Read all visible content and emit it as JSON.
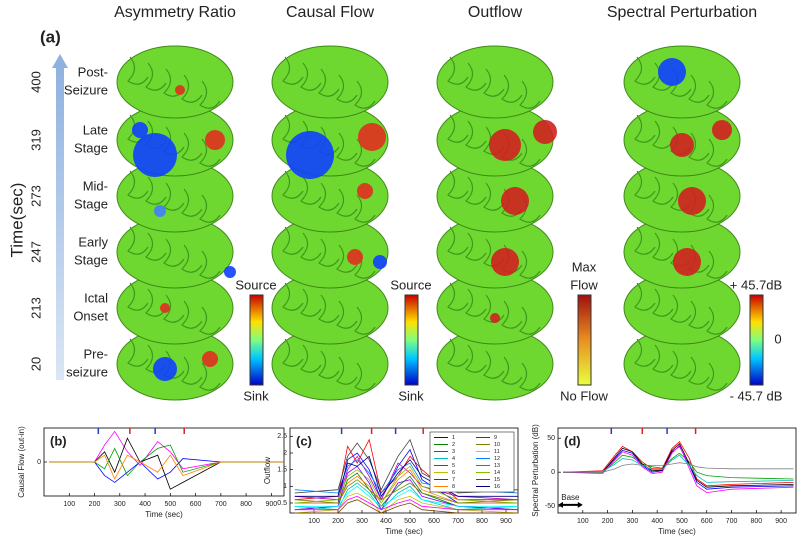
{
  "panel_a": {
    "label": "(a)",
    "columns": [
      "Asymmetry Ratio",
      "Causal Flow",
      "Outflow",
      "Spectral Perturbation"
    ],
    "time_axis_label": "Time(sec)",
    "rows": [
      {
        "time": "400",
        "stage": [
          "Post-",
          "Seizure"
        ]
      },
      {
        "time": "319",
        "stage": [
          "Late",
          "Stage"
        ]
      },
      {
        "time": "273",
        "stage": [
          "Mid-",
          "Stage"
        ]
      },
      {
        "time": "247",
        "stage": [
          "Early",
          "Stage"
        ]
      },
      {
        "time": "213",
        "stage": [
          "Ictal",
          "Onset"
        ]
      },
      {
        "time": "20",
        "stage": [
          "Pre-",
          "seizure"
        ]
      }
    ],
    "colorbars": [
      {
        "top": [
          "Source"
        ],
        "bottom": "Sink"
      },
      {
        "top": [
          "Source"
        ],
        "bottom": "Sink"
      },
      {
        "top": [
          "Max",
          "Flow"
        ],
        "bottom": "No Flow"
      },
      {
        "top": [
          "+ 45.7dB"
        ],
        "middle": "0",
        "bottom": "- 45.7 dB"
      }
    ]
  },
  "chart_data": [
    {
      "type": "line",
      "label": "(b)",
      "ylabel": "Causal Flow (out-in)",
      "xlabel": "Time (sec)",
      "xlim": [
        0,
        950
      ],
      "xticks": [
        100,
        200,
        300,
        400,
        500,
        600,
        700,
        800,
        900
      ],
      "ylim": [
        -1,
        1
      ],
      "yticks": [
        0
      ],
      "events": [
        {
          "x": 215,
          "color": "#2040c0"
        },
        {
          "x": 340,
          "color": "#e02020"
        },
        {
          "x": 440,
          "color": "#2040c0"
        },
        {
          "x": 555,
          "color": "#e02020"
        }
      ],
      "x": [
        20,
        200,
        240,
        280,
        330,
        380,
        450,
        500,
        550,
        700,
        950
      ],
      "series": [
        {
          "color": "#ff00ff",
          "values": [
            0,
            0,
            0.5,
            0.9,
            0.3,
            -0.1,
            0.6,
            0.3,
            -0.2,
            0,
            0
          ]
        },
        {
          "color": "#0000ff",
          "values": [
            0,
            0,
            -0.4,
            -0.6,
            -0.3,
            0,
            -0.5,
            -0.3,
            0.1,
            0,
            0
          ]
        },
        {
          "color": "#000000",
          "values": [
            0,
            0,
            0.3,
            -0.3,
            0.7,
            0,
            0.2,
            -0.8,
            -0.6,
            0,
            0
          ]
        },
        {
          "color": "#00a000",
          "values": [
            0,
            0,
            -0.2,
            0.4,
            -0.4,
            0,
            0.4,
            0.5,
            -0.3,
            0,
            0
          ]
        },
        {
          "color": "#ff8000",
          "values": [
            0,
            0,
            0.2,
            -0.5,
            0.2,
            0,
            -0.3,
            0.2,
            -0.4,
            0,
            0
          ]
        }
      ]
    },
    {
      "type": "line",
      "label": "(c)",
      "ylabel": "Outflow",
      "xlabel": "Time (sec)",
      "xlim": [
        0,
        950
      ],
      "xticks": [
        100,
        200,
        300,
        400,
        500,
        600,
        700,
        800,
        900
      ],
      "ylim": [
        0.2,
        2.75
      ],
      "yticks": [
        0.5,
        1,
        1.5,
        2,
        2.5
      ],
      "legend": "upper right",
      "events": [
        {
          "x": 215,
          "color": "#2040c0"
        },
        {
          "x": 340,
          "color": "#e02020"
        },
        {
          "x": 440,
          "color": "#2040c0"
        },
        {
          "x": 555,
          "color": "#e02020"
        }
      ],
      "x": [
        20,
        200,
        240,
        280,
        330,
        380,
        450,
        500,
        550,
        700,
        950
      ],
      "series": [
        {
          "name": "1",
          "color": "#0000ff",
          "values": [
            0.5,
            0.5,
            1.8,
            2.0,
            1.5,
            0.6,
            1.6,
            2.1,
            1.2,
            0.5,
            0.5
          ]
        },
        {
          "name": "2",
          "color": "#008000",
          "values": [
            0.3,
            0.4,
            1.2,
            1.4,
            0.9,
            0.4,
            1.0,
            1.3,
            0.8,
            0.4,
            0.3
          ]
        },
        {
          "name": "3",
          "color": "#ff0000",
          "values": [
            0.6,
            0.7,
            2.2,
            1.7,
            2.4,
            0.8,
            1.3,
            1.9,
            1.5,
            0.6,
            0.6
          ]
        },
        {
          "name": "4",
          "color": "#00bfbf",
          "values": [
            0.4,
            0.3,
            0.9,
            1.1,
            0.8,
            0.3,
            0.8,
            1.0,
            0.6,
            0.3,
            0.4
          ]
        },
        {
          "name": "5",
          "color": "#bf00bf",
          "values": [
            0.7,
            0.6,
            1.5,
            1.9,
            1.3,
            0.6,
            1.7,
            1.4,
            1.0,
            0.7,
            0.6
          ]
        },
        {
          "name": "6",
          "color": "#bfbf00",
          "values": [
            0.2,
            0.3,
            0.7,
            0.8,
            0.6,
            0.2,
            0.6,
            0.7,
            0.5,
            0.3,
            0.2
          ]
        },
        {
          "name": "7",
          "color": "#404040",
          "values": [
            0.8,
            0.9,
            1.9,
            2.3,
            1.8,
            0.9,
            1.9,
            2.4,
            1.4,
            0.8,
            0.9
          ]
        },
        {
          "name": "8",
          "color": "#ff8000",
          "values": [
            0.5,
            0.5,
            1.1,
            1.3,
            1.0,
            0.5,
            1.2,
            1.5,
            0.9,
            0.5,
            0.5
          ]
        },
        {
          "name": "9",
          "color": "#8000ff",
          "values": [
            0.3,
            0.4,
            1.4,
            1.6,
            1.1,
            0.3,
            1.1,
            1.2,
            0.7,
            0.4,
            0.3
          ]
        },
        {
          "name": "10",
          "color": "#808000",
          "values": [
            0.6,
            0.5,
            1.0,
            1.2,
            0.9,
            0.6,
            0.9,
            1.1,
            0.8,
            0.5,
            0.6
          ]
        },
        {
          "name": "11",
          "color": "#00ffff",
          "values": [
            0.4,
            0.4,
            0.8,
            1.0,
            0.7,
            0.4,
            0.7,
            0.9,
            0.6,
            0.4,
            0.4
          ]
        },
        {
          "name": "12",
          "color": "#0080ff",
          "values": [
            0.9,
            0.8,
            1.6,
            1.8,
            1.4,
            0.8,
            1.5,
            1.7,
            1.1,
            0.9,
            0.8
          ]
        },
        {
          "name": "13",
          "color": "#ff00ff",
          "values": [
            0.3,
            0.3,
            0.6,
            0.7,
            0.5,
            0.3,
            0.5,
            0.6,
            0.4,
            0.3,
            0.3
          ]
        },
        {
          "name": "14",
          "color": "#80c000",
          "values": [
            0.5,
            0.6,
            1.3,
            1.5,
            1.2,
            0.5,
            1.3,
            1.6,
            1.0,
            0.6,
            0.5
          ]
        },
        {
          "name": "15",
          "color": "#804000",
          "values": [
            0.2,
            0.2,
            0.5,
            0.6,
            0.4,
            0.2,
            0.4,
            0.5,
            0.3,
            0.2,
            0.2
          ]
        },
        {
          "name": "16",
          "color": "#000080",
          "values": [
            0.7,
            0.7,
            1.7,
            1.6,
            1.9,
            0.7,
            1.4,
            1.8,
            1.3,
            0.7,
            0.7
          ]
        }
      ]
    },
    {
      "type": "line",
      "label": "(d)",
      "ylabel": "Spectral Perturbation (dB)",
      "xlabel": "Time (sec)",
      "xlim": [
        0,
        960
      ],
      "xticks": [
        100,
        200,
        300,
        400,
        500,
        600,
        700,
        800,
        900
      ],
      "ylim": [
        -60,
        65
      ],
      "yticks": [
        -50,
        0,
        50
      ],
      "events": [
        {
          "x": 215,
          "color": "#2040c0"
        },
        {
          "x": 340,
          "color": "#e02020"
        },
        {
          "x": 440,
          "color": "#2040c0"
        },
        {
          "x": 555,
          "color": "#e02020"
        }
      ],
      "annotation": {
        "text": "Base",
        "range": [
          0,
          100
        ],
        "y": -48
      },
      "x": [
        20,
        180,
        230,
        260,
        300,
        340,
        380,
        420,
        460,
        490,
        530,
        560,
        600,
        700,
        950
      ],
      "series": [
        {
          "color": "#0000ff",
          "values": [
            0,
            0,
            20,
            32,
            28,
            10,
            0,
            2,
            30,
            38,
            10,
            -15,
            -25,
            -22,
            -20
          ]
        },
        {
          "color": "#ff0000",
          "values": [
            0,
            2,
            25,
            38,
            30,
            15,
            5,
            5,
            35,
            45,
            20,
            -10,
            -20,
            -18,
            -15
          ]
        },
        {
          "color": "#00a000",
          "values": [
            0,
            0,
            15,
            25,
            22,
            12,
            8,
            6,
            20,
            28,
            15,
            0,
            -5,
            -8,
            -10
          ]
        },
        {
          "color": "#ff00ff",
          "values": [
            0,
            -2,
            18,
            30,
            25,
            8,
            -2,
            0,
            28,
            40,
            5,
            -20,
            -30,
            -25,
            -22
          ]
        },
        {
          "color": "#000000",
          "values": [
            0,
            0,
            22,
            35,
            30,
            12,
            2,
            3,
            32,
            42,
            12,
            -12,
            -22,
            -20,
            -18
          ]
        },
        {
          "color": "#00bfbf",
          "values": [
            0,
            1,
            12,
            20,
            18,
            10,
            4,
            4,
            18,
            25,
            10,
            -5,
            -15,
            -14,
            -12
          ]
        },
        {
          "color": "#808080",
          "values": [
            0,
            0,
            5,
            10,
            12,
            10,
            10,
            10,
            12,
            14,
            12,
            8,
            6,
            5,
            5
          ]
        }
      ]
    }
  ]
}
